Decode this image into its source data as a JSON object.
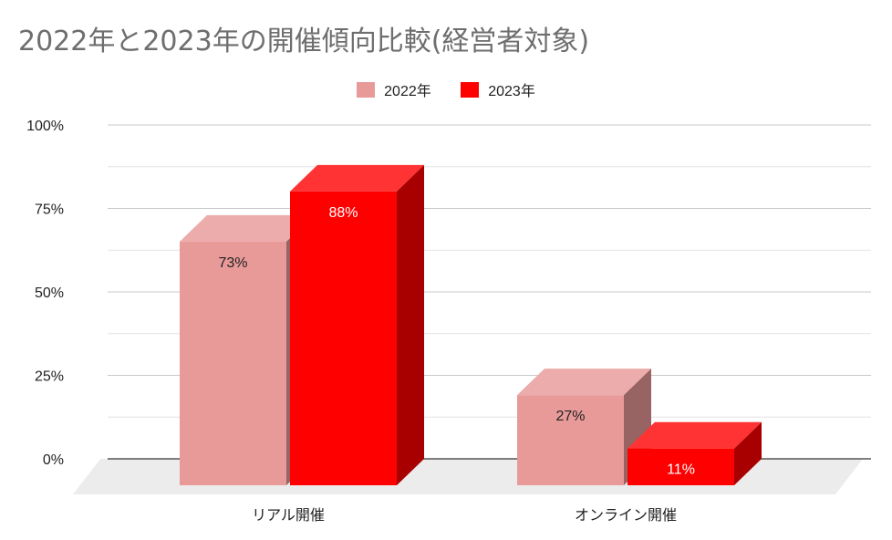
{
  "chart_data": {
    "type": "bar",
    "title": "2022年と2023年の開催傾向比較(経営者対象)",
    "categories": [
      "リアル開催",
      "オンライン開催"
    ],
    "series": [
      {
        "name": "2022年",
        "values": [
          73,
          27
        ],
        "color": "#e89a99",
        "label_color": "#222222"
      },
      {
        "name": "2023年",
        "values": [
          88,
          11
        ],
        "color": "#ff0000",
        "label_color": "#ffffff"
      }
    ],
    "value_labels": [
      [
        "73%",
        "27%"
      ],
      [
        "88%",
        "11%"
      ]
    ],
    "y_ticks": [
      "0%",
      "25%",
      "50%",
      "75%",
      "100%"
    ],
    "y_tick_values": [
      0,
      25,
      50,
      75,
      100
    ],
    "ylim": [
      0,
      100
    ],
    "xlabel": "",
    "ylabel": "",
    "grid": true,
    "legend_position": "top-center",
    "style": "3d"
  }
}
